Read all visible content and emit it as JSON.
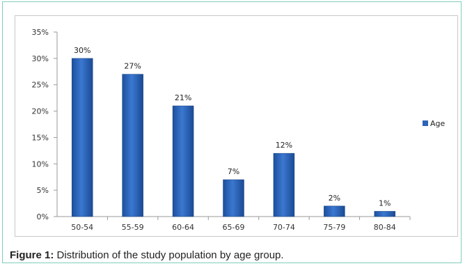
{
  "caption": {
    "label": "Figure 1:",
    "text": " Distribution of the study population by age group."
  },
  "chart_data": {
    "type": "bar",
    "categories": [
      "50-54",
      "55-59",
      "60-64",
      "65-69",
      "70-74",
      "75-79",
      "80-84"
    ],
    "series": [
      {
        "name": "Age",
        "values": [
          30,
          27,
          21,
          7,
          12,
          2,
          1
        ],
        "color": "#2e64b8"
      }
    ],
    "data_labels": [
      "30%",
      "27%",
      "21%",
      "7%",
      "12%",
      "2%",
      "1%"
    ],
    "y_ticks": [
      "0%",
      "5%",
      "10%",
      "15%",
      "20%",
      "25%",
      "30%",
      "35%"
    ],
    "ylim": [
      0,
      35
    ],
    "grid": false,
    "legend_position": "right",
    "title": "",
    "xlabel": "",
    "ylabel": ""
  }
}
